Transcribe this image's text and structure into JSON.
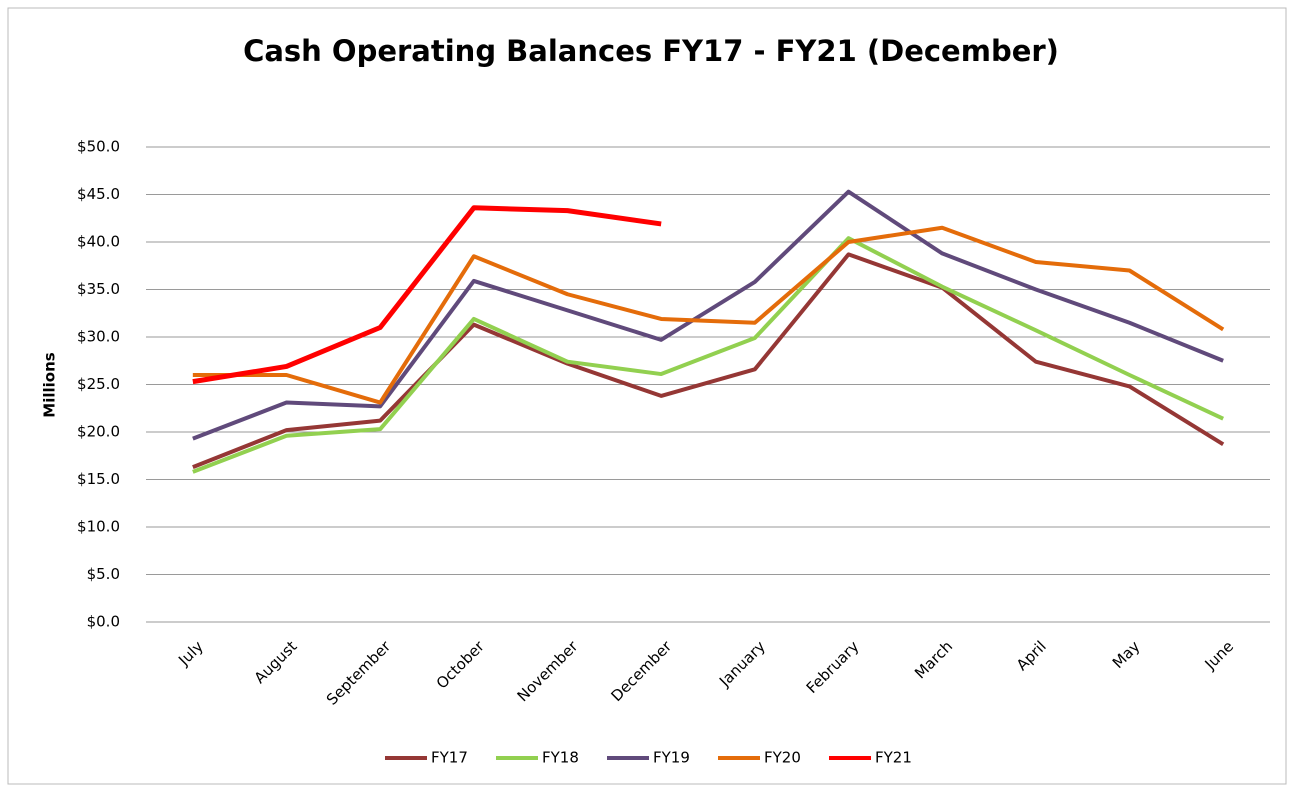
{
  "chart_data": {
    "type": "line",
    "title": "Cash Operating Balances FY17 - FY21 (December)",
    "y_label": "Millions",
    "categories": [
      "July",
      "August",
      "September",
      "October",
      "November",
      "December",
      "January",
      "February",
      "March",
      "April",
      "May",
      "June"
    ],
    "series": [
      {
        "name": "FY17",
        "color": "#953735",
        "values": [
          16.3,
          20.2,
          21.2,
          31.3,
          27.2,
          23.8,
          26.6,
          38.7,
          35.2,
          27.4,
          24.8,
          18.7
        ]
      },
      {
        "name": "FY18",
        "color": "#92D050",
        "values": [
          15.8,
          19.6,
          20.3,
          31.9,
          27.4,
          26.1,
          29.9,
          40.4,
          35.3,
          30.7,
          26.0,
          21.4
        ]
      },
      {
        "name": "FY19",
        "color": "#604A7B",
        "values": [
          19.3,
          23.1,
          22.7,
          35.9,
          32.8,
          29.7,
          35.8,
          45.3,
          38.8,
          35.0,
          31.5,
          27.5
        ]
      },
      {
        "name": "FY20",
        "color": "#E46C0A",
        "values": [
          26.0,
          26.0,
          23.1,
          38.5,
          34.5,
          31.9,
          31.5,
          40.0,
          41.5,
          37.9,
          37.0,
          30.8
        ]
      },
      {
        "name": "FY21",
        "color": "#FF0000",
        "values": [
          25.3,
          26.9,
          31.0,
          43.6,
          43.3,
          41.9,
          null,
          null,
          null,
          null,
          null,
          null
        ]
      }
    ],
    "ylim": [
      0,
      50
    ],
    "yticks": [
      {
        "value": 0,
        "label": "$0.0"
      },
      {
        "value": 5,
        "label": "$5.0"
      },
      {
        "value": 10,
        "label": "$10.0"
      },
      {
        "value": 15,
        "label": "$15.0"
      },
      {
        "value": 20,
        "label": "$20.0"
      },
      {
        "value": 25,
        "label": "$25.0"
      },
      {
        "value": 30,
        "label": "$30.0"
      },
      {
        "value": 35,
        "label": "$35.0"
      },
      {
        "value": 40,
        "label": "$40.0"
      },
      {
        "value": 45,
        "label": "$45.0"
      },
      {
        "value": 50,
        "label": "$50.0"
      }
    ],
    "grid": true,
    "legend": "bottom"
  }
}
